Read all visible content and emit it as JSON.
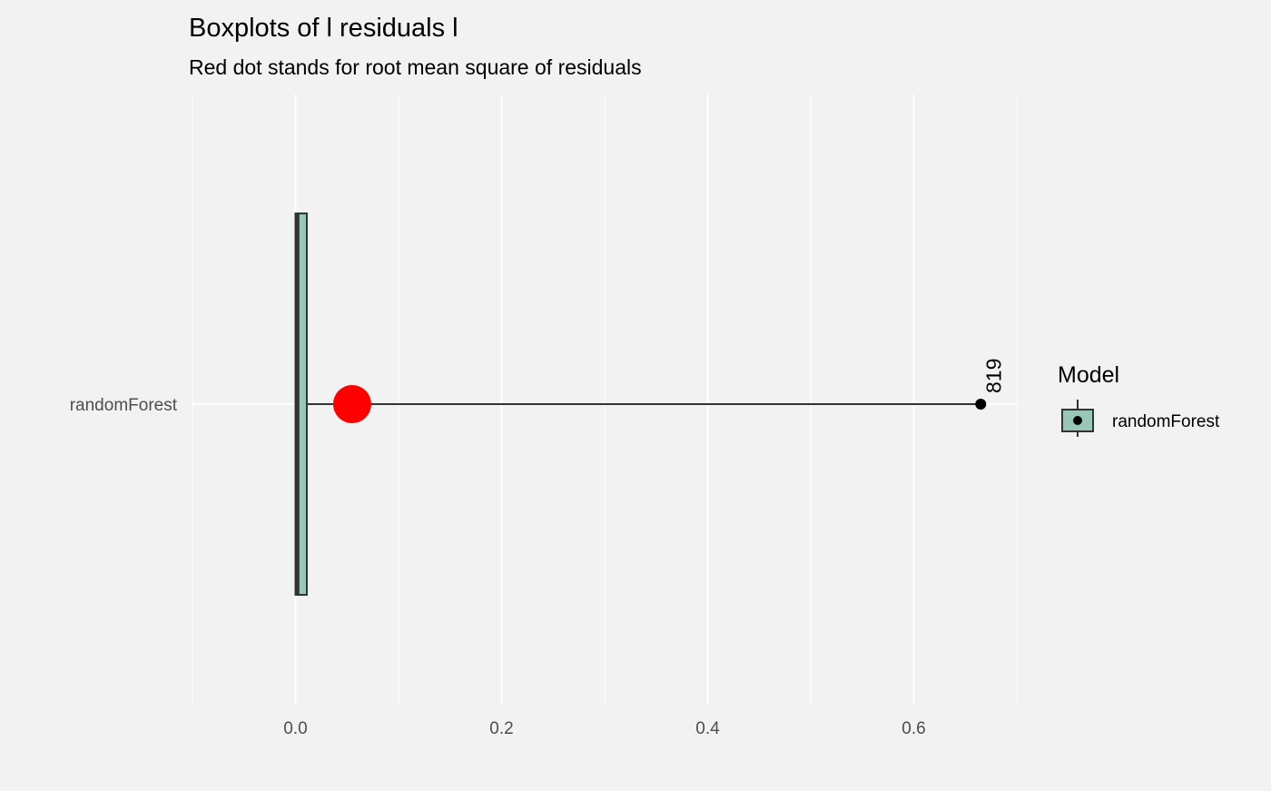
{
  "chart_data": {
    "type": "boxplot",
    "title": "Boxplots of l residuals l",
    "subtitle": "Red dot stands for root mean square of residuals",
    "xlabel": "",
    "ylabel": "",
    "xlim": [
      -0.1,
      0.7
    ],
    "x_ticks": [
      0.0,
      0.2,
      0.4,
      0.6
    ],
    "x_tick_labels": [
      "0.0",
      "0.2",
      "0.4",
      "0.6"
    ],
    "grid": true,
    "categories": [
      "randomForest"
    ],
    "series": [
      {
        "name": "randomForest",
        "color": "#99c7b6",
        "box": {
          "min": 0.0,
          "q1": 0.0,
          "median": 0.002,
          "q3": 0.011,
          "max": 0.665
        },
        "outliers": [
          {
            "value": 0.665,
            "label": "819"
          }
        ],
        "rms": 0.055
      }
    ],
    "legend": {
      "title": "Model",
      "position": "right",
      "entries": [
        "randomForest"
      ]
    },
    "rms_color": "#ff0000"
  }
}
